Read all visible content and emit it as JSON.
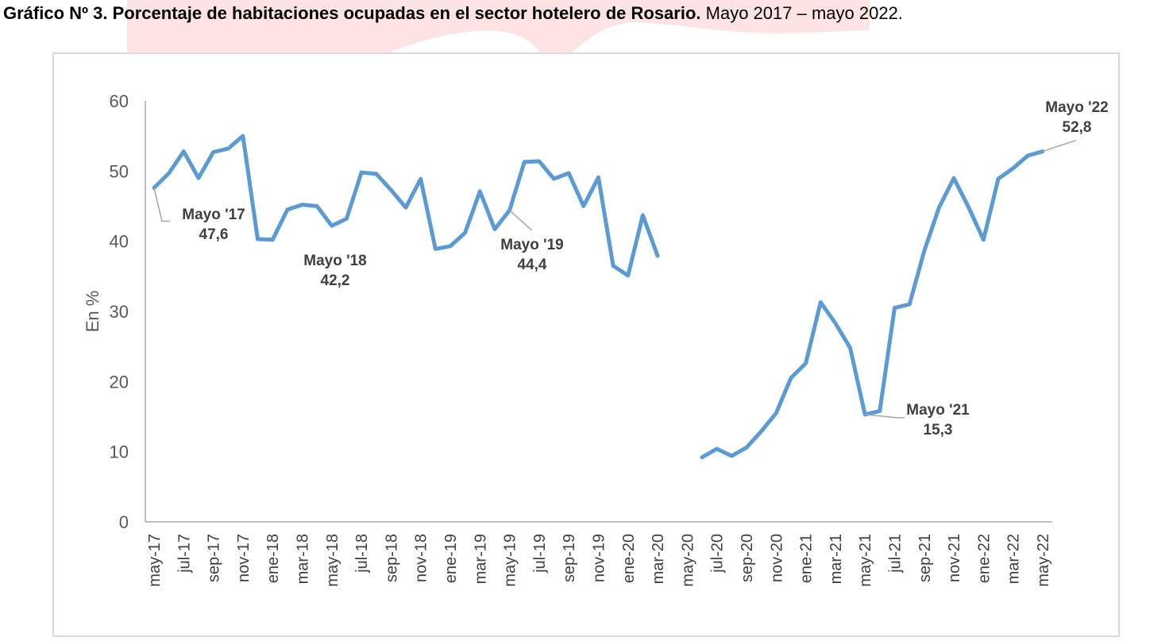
{
  "title": {
    "bold": "Gráfico Nº 3. Porcentaje de habitaciones ocupadas en el sector hotelero de Rosario.",
    "normal": " Mayo 2017 – mayo 2022."
  },
  "colors": {
    "line": "#5b9bd5",
    "axis": "#bfbfbf",
    "text": "#595959",
    "label": "#404040",
    "strip": "#fde3e3"
  },
  "chart_data": {
    "type": "line",
    "ylabel": "En %",
    "ylim": [
      0,
      60
    ],
    "yticks": [
      0,
      10,
      20,
      30,
      40,
      50,
      60
    ],
    "grid": false,
    "tick_labels": [
      "may-17",
      "jul-17",
      "sep-17",
      "nov-17",
      "ene-18",
      "mar-18",
      "may-18",
      "jul-18",
      "sep-18",
      "nov-18",
      "ene-19",
      "mar-19",
      "may-19",
      "jul-19",
      "sep-19",
      "nov-19",
      "ene-20",
      "mar-20",
      "may-20",
      "jul-20",
      "sep-20",
      "nov-20",
      "ene-21",
      "mar-21",
      "may-21",
      "jul-21",
      "sep-21",
      "nov-21",
      "ene-22",
      "mar-22",
      "may-22"
    ],
    "x": [
      "may-17",
      "jun-17",
      "jul-17",
      "ago-17",
      "sep-17",
      "oct-17",
      "nov-17",
      "dic-17",
      "ene-18",
      "feb-18",
      "mar-18",
      "abr-18",
      "may-18",
      "jun-18",
      "jul-18",
      "ago-18",
      "sep-18",
      "oct-18",
      "nov-18",
      "dic-18",
      "ene-19",
      "feb-19",
      "mar-19",
      "abr-19",
      "may-19",
      "jun-19",
      "jul-19",
      "ago-19",
      "sep-19",
      "oct-19",
      "nov-19",
      "dic-19",
      "ene-20",
      "feb-20",
      "mar-20",
      "abr-20",
      "may-20",
      "jun-20",
      "jul-20",
      "ago-20",
      "sep-20",
      "oct-20",
      "nov-20",
      "dic-20",
      "ene-21",
      "feb-21",
      "mar-21",
      "abr-21",
      "may-21",
      "jun-21",
      "jul-21",
      "ago-21",
      "sep-21",
      "oct-21",
      "nov-21",
      "dic-21",
      "ene-22",
      "feb-22",
      "mar-22",
      "abr-22",
      "may-22"
    ],
    "series": [
      {
        "values": [
          47.6,
          49.7,
          52.8,
          49.0,
          52.7,
          53.2,
          55.0,
          40.3,
          40.2,
          44.5,
          45.2,
          45.0,
          42.2,
          43.2,
          49.8,
          49.6,
          47.3,
          44.8,
          48.9,
          38.9,
          39.3,
          41.2,
          47.1,
          41.7,
          44.4,
          51.3,
          51.4,
          48.9,
          49.7,
          45.0,
          49.1,
          36.5,
          35.1,
          43.7,
          37.9,
          null,
          null,
          9.2,
          10.4,
          9.4,
          10.6,
          12.9,
          15.5,
          20.5,
          22.6,
          31.3,
          28.3,
          24.8,
          15.3,
          15.8,
          30.5,
          31.0,
          38.6,
          44.8,
          49.0,
          44.8,
          40.2,
          48.9,
          50.4,
          52.2,
          52.8
        ]
      }
    ],
    "annotations": [
      {
        "name": "Mayo '17",
        "value": "47,6",
        "x": "may-17"
      },
      {
        "name": "Mayo '18",
        "value": "42,2",
        "x": "may-18"
      },
      {
        "name": "Mayo '19",
        "value": "44,4",
        "x": "may-19"
      },
      {
        "name": "Mayo '21",
        "value": "15,3",
        "x": "may-21"
      },
      {
        "name": "Mayo '22",
        "value": "52,8",
        "x": "may-22"
      }
    ]
  }
}
